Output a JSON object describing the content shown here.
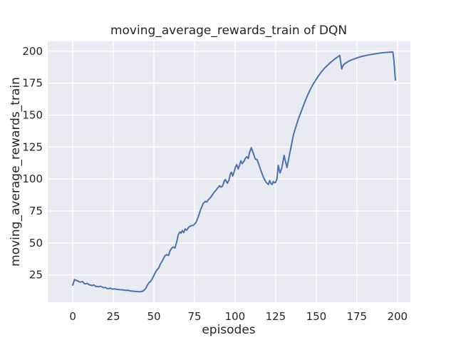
{
  "chart_data": {
    "type": "line",
    "title": "moving_average_rewards_train of DQN",
    "xlabel": "episodes",
    "ylabel": "moving_average_rewards_train",
    "xticks": [
      0,
      25,
      50,
      75,
      100,
      125,
      150,
      175,
      200
    ],
    "yticks": [
      25,
      50,
      75,
      100,
      125,
      150,
      175,
      200
    ],
    "xlim": [
      -15.4,
      208.0
    ],
    "ylim": [
      3.6,
      207.7
    ],
    "grid": true,
    "legend": "none",
    "style": {
      "figure_bg": "#ffffff",
      "plot_bg": "#eaeaf2",
      "grid_color": "#ffffff",
      "line_color": "#4c72b0",
      "text_color": "#262626",
      "line_width": 2
    },
    "series": [
      {
        "name": "DQN moving average rewards (train)",
        "points": [
          [
            0,
            17
          ],
          [
            1,
            21.3
          ],
          [
            2,
            20.8
          ],
          [
            3,
            20.2
          ],
          [
            4,
            19.6
          ],
          [
            5,
            19.4
          ],
          [
            6,
            19.8
          ],
          [
            7,
            18.3
          ],
          [
            8,
            18
          ],
          [
            9,
            18.3
          ],
          [
            10,
            17.4
          ],
          [
            11,
            17
          ],
          [
            12,
            16.6
          ],
          [
            13,
            17.2
          ],
          [
            14,
            16.1
          ],
          [
            15,
            15.9
          ],
          [
            16,
            15.7
          ],
          [
            17,
            16.1
          ],
          [
            18,
            15.6
          ],
          [
            19,
            15
          ],
          [
            20,
            15.2
          ],
          [
            21,
            14.5
          ],
          [
            22,
            14.2
          ],
          [
            23,
            14.6
          ],
          [
            24,
            14.1
          ],
          [
            25,
            13.9
          ],
          [
            26,
            14.1
          ],
          [
            27,
            13.7
          ],
          [
            28,
            13.6
          ],
          [
            29,
            13.4
          ],
          [
            30,
            13.3
          ],
          [
            31,
            13.3
          ],
          [
            32,
            13
          ],
          [
            33,
            12.8
          ],
          [
            34,
            13
          ],
          [
            35,
            12.6
          ],
          [
            36,
            12.4
          ],
          [
            37,
            12.3
          ],
          [
            38,
            12.1
          ],
          [
            39,
            12
          ],
          [
            40,
            11.9
          ],
          [
            41,
            11.8
          ],
          [
            42,
            11.9
          ],
          [
            43,
            12.2
          ],
          [
            44,
            13
          ],
          [
            45,
            14.5
          ],
          [
            46,
            17
          ],
          [
            47,
            19
          ],
          [
            48,
            20
          ],
          [
            49,
            22
          ],
          [
            50,
            24.5
          ],
          [
            51,
            27.2
          ],
          [
            52,
            29.1
          ],
          [
            53,
            30.4
          ],
          [
            54,
            33.5
          ],
          [
            55,
            35.6
          ],
          [
            56,
            38
          ],
          [
            57,
            40.3
          ],
          [
            58,
            40.8
          ],
          [
            59,
            40.2
          ],
          [
            60,
            44
          ],
          [
            61,
            46
          ],
          [
            62,
            46.8
          ],
          [
            63,
            46
          ],
          [
            64,
            50.5
          ],
          [
            65,
            56.4
          ],
          [
            66,
            58.6
          ],
          [
            66.7,
            57.7
          ],
          [
            67.5,
            59.7
          ],
          [
            68.4,
            58.1
          ],
          [
            69.3,
            61
          ],
          [
            70.2,
            60
          ],
          [
            71.5,
            62.4
          ],
          [
            73,
            63.5
          ],
          [
            74.4,
            63.8
          ],
          [
            76,
            66
          ],
          [
            77.3,
            70.4
          ],
          [
            78.8,
            76
          ],
          [
            80.3,
            80.7
          ],
          [
            81.7,
            82.5
          ],
          [
            82.5,
            82
          ],
          [
            83.2,
            83.4
          ],
          [
            84.5,
            85
          ],
          [
            85.5,
            86.5
          ],
          [
            86.8,
            89.2
          ],
          [
            88,
            90.8
          ],
          [
            89,
            92.6
          ],
          [
            90.5,
            94.8
          ],
          [
            91.3,
            93.6
          ],
          [
            92.3,
            94.5
          ],
          [
            93.4,
            98.6
          ],
          [
            94,
            99.6
          ],
          [
            95.2,
            96.7
          ],
          [
            96.2,
            99
          ],
          [
            97.1,
            104.1
          ],
          [
            97.8,
            105.3
          ],
          [
            98.5,
            102.3
          ],
          [
            99.4,
            105.5
          ],
          [
            100.3,
            109.7
          ],
          [
            101,
            111.2
          ],
          [
            101.9,
            107.9
          ],
          [
            102.8,
            111
          ],
          [
            103.6,
            114.3
          ],
          [
            104.4,
            112
          ],
          [
            105.5,
            114
          ],
          [
            106.4,
            116.3
          ],
          [
            107.3,
            117.5
          ],
          [
            108.1,
            116
          ],
          [
            109,
            121
          ],
          [
            110,
            124.5
          ],
          [
            111,
            121
          ],
          [
            111.7,
            118.5
          ],
          [
            112.4,
            115.7
          ],
          [
            113.5,
            115.2
          ],
          [
            114.6,
            111.5
          ],
          [
            116.1,
            106
          ],
          [
            117.5,
            101.3
          ],
          [
            119,
            97.6
          ],
          [
            120.5,
            95.7
          ],
          [
            121.3,
            98.8
          ],
          [
            122,
            96.5
          ],
          [
            122.8,
            95.8
          ],
          [
            123.5,
            98
          ],
          [
            124.3,
            97
          ],
          [
            125,
            97.5
          ],
          [
            125.8,
            100
          ],
          [
            126.6,
            110.7
          ],
          [
            127.7,
            104.7
          ],
          [
            128.6,
            108
          ],
          [
            129.3,
            112
          ],
          [
            130.2,
            118.6
          ],
          [
            131,
            114
          ],
          [
            132,
            109
          ],
          [
            133,
            115.5
          ],
          [
            134,
            122
          ],
          [
            135,
            128.5
          ],
          [
            136,
            135
          ],
          [
            137.5,
            141
          ],
          [
            139,
            147
          ],
          [
            140.5,
            152
          ],
          [
            142,
            157
          ],
          [
            143.5,
            162
          ],
          [
            145,
            166.5
          ],
          [
            146.5,
            170.5
          ],
          [
            148,
            174
          ],
          [
            149.5,
            177
          ],
          [
            151,
            180
          ],
          [
            153,
            183.5
          ],
          [
            155,
            186.5
          ],
          [
            157,
            189
          ],
          [
            159,
            191.5
          ],
          [
            161,
            193.5
          ],
          [
            163,
            195.3
          ],
          [
            164.5,
            196.7
          ],
          [
            165.1,
            191
          ],
          [
            165.7,
            186.1
          ],
          [
            166.3,
            188.2
          ],
          [
            167.2,
            189.8
          ],
          [
            168.5,
            191
          ],
          [
            170,
            192.2
          ],
          [
            172,
            193.3
          ],
          [
            174,
            194.2
          ],
          [
            176,
            195.1
          ],
          [
            178,
            195.9
          ],
          [
            180,
            196.5
          ],
          [
            182,
            197
          ],
          [
            184,
            197.5
          ],
          [
            186,
            197.9
          ],
          [
            188,
            198.3
          ],
          [
            190,
            198.6
          ],
          [
            192,
            198.9
          ],
          [
            194,
            199.1
          ],
          [
            196,
            199.3
          ],
          [
            197.2,
            199.4
          ],
          [
            197.8,
            193
          ],
          [
            198.3,
            185
          ],
          [
            198.8,
            177.5
          ]
        ]
      }
    ]
  }
}
